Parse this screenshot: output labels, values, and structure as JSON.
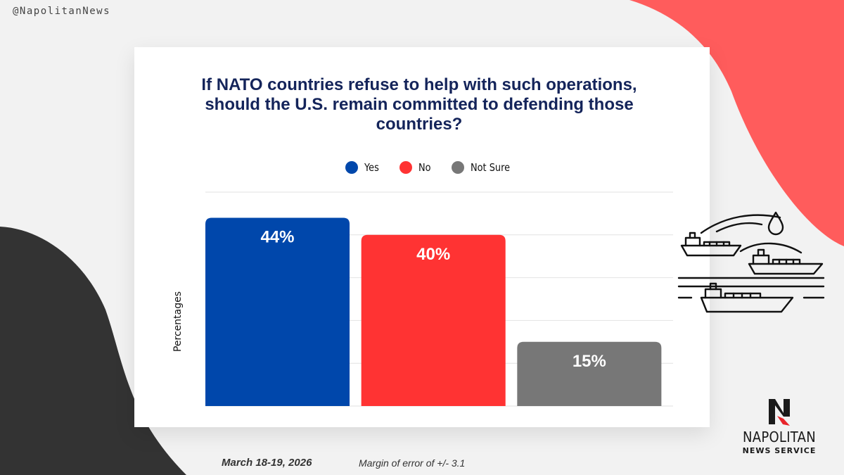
{
  "social_handle": "@NapolitanNews",
  "brand": {
    "name": "NAPOLITAN",
    "subtitle": "NEWS SERVICE"
  },
  "footer": {
    "date": "March 18-19, 2026",
    "margin_of_error": "Margin of error of +/- 3.1"
  },
  "colors": {
    "yes": "#0047ab",
    "no": "#ff3333",
    "not_sure": "#777777",
    "title": "#14245a"
  },
  "chart_data": {
    "type": "bar",
    "title": "If NATO countries refuse to help with such operations, should the U.S. remain committed to defending those countries?",
    "categories": [
      "Yes",
      "No",
      "Not Sure"
    ],
    "values": [
      44,
      40,
      15
    ],
    "value_labels": [
      "44%",
      "40%",
      "15%"
    ],
    "colors": [
      "#0047ab",
      "#ff3333",
      "#777777"
    ],
    "ylabel": "Percentages",
    "xlabel": "",
    "ylim": [
      0,
      50
    ],
    "grid": true,
    "legend_position": "top"
  }
}
